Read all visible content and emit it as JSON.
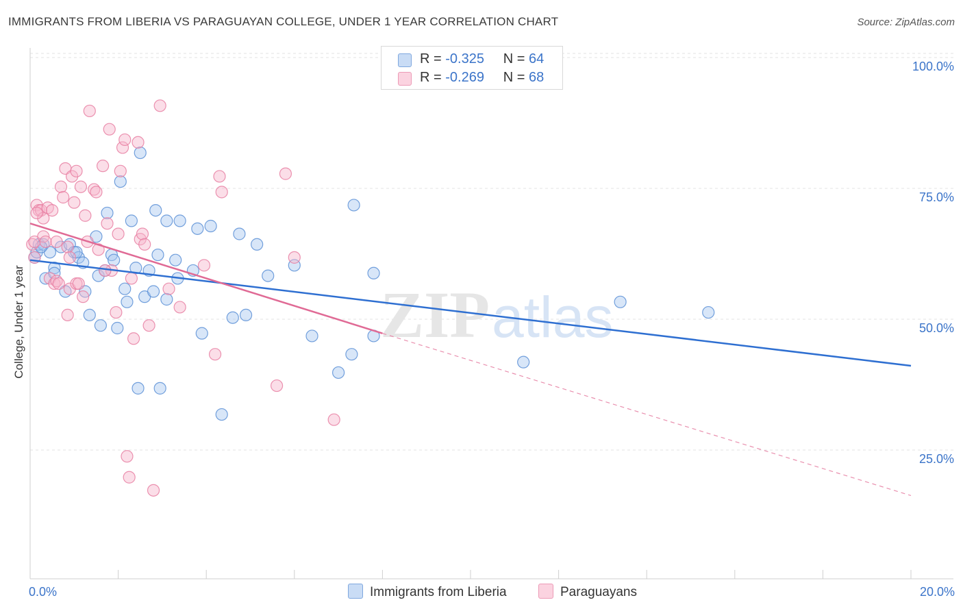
{
  "title": "IMMIGRANTS FROM LIBERIA VS PARAGUAYAN COLLEGE, UNDER 1 YEAR CORRELATION CHART",
  "source": "Source: ZipAtlas.com",
  "watermark": {
    "zip": "ZIP",
    "atlas": "atlas"
  },
  "legend_top": {
    "rows": [
      {
        "r_label": "R = ",
        "r_value": "-0.325",
        "n_label": "N = ",
        "n_value": "64",
        "color": "#a9c8f0"
      },
      {
        "r_label": "R = ",
        "r_value": "-0.269",
        "n_label": "N = ",
        "n_value": "68",
        "color": "#f7b6cb"
      }
    ]
  },
  "legend_bottom": [
    {
      "label": "Immigrants from Liberia",
      "color": "#a9c8f0"
    },
    {
      "label": "Paraguayans",
      "color": "#f7b6cb"
    }
  ],
  "chart_data": {
    "type": "scatter",
    "title": "IMMIGRANTS FROM LIBERIA VS PARAGUAYAN COLLEGE, UNDER 1 YEAR CORRELATION CHART",
    "xlabel": "",
    "ylabel": "College, Under 1 year",
    "xlim": [
      0,
      20
    ],
    "ylim": [
      0,
      105
    ],
    "x_tick_labels": [
      "0.0%",
      "20.0%"
    ],
    "x_tick_label_values": [
      0,
      20
    ],
    "x_ticks": [
      0,
      2,
      4,
      6,
      8,
      10,
      12,
      14,
      16,
      18,
      20
    ],
    "y_ticks": [
      25,
      50,
      75,
      100
    ],
    "y_tick_labels": [
      "25.0%",
      "50.0%",
      "75.0%",
      "100.0%"
    ],
    "grid": true,
    "series": [
      {
        "name": "Immigrants from Liberia",
        "color": "#5b8fd6",
        "fill": "#a9c8f0",
        "trend": {
          "x": [
            0,
            20
          ],
          "y": [
            63.0,
            42.8
          ],
          "color": "#2e6fd1"
        },
        "points": [
          [
            0.1,
            63.5
          ],
          [
            0.15,
            64.5
          ],
          [
            0.2,
            66.0
          ],
          [
            0.3,
            66.0
          ],
          [
            0.35,
            59.5
          ],
          [
            0.45,
            64.5
          ],
          [
            0.55,
            61.5
          ],
          [
            0.55,
            60.5
          ],
          [
            0.7,
            65.5
          ],
          [
            0.8,
            57.0
          ],
          [
            0.9,
            66.0
          ],
          [
            1.0,
            64.5
          ],
          [
            1.1,
            63.5
          ],
          [
            1.2,
            62.5
          ],
          [
            1.25,
            57.0
          ],
          [
            1.35,
            52.5
          ],
          [
            1.5,
            67.5
          ],
          [
            1.55,
            60.0
          ],
          [
            1.6,
            50.5
          ],
          [
            1.7,
            61.0
          ],
          [
            1.75,
            72.0
          ],
          [
            1.85,
            64.0
          ],
          [
            1.9,
            63.0
          ],
          [
            1.98,
            50.0
          ],
          [
            2.05,
            78.0
          ],
          [
            2.15,
            57.5
          ],
          [
            2.2,
            55.0
          ],
          [
            2.3,
            70.5
          ],
          [
            2.4,
            61.5
          ],
          [
            2.45,
            38.5
          ],
          [
            2.5,
            83.5
          ],
          [
            2.6,
            56.0
          ],
          [
            2.7,
            61.0
          ],
          [
            2.8,
            57.0
          ],
          [
            2.85,
            72.5
          ],
          [
            2.9,
            64.0
          ],
          [
            2.95,
            38.5
          ],
          [
            3.1,
            70.5
          ],
          [
            3.1,
            55.5
          ],
          [
            3.3,
            63.0
          ],
          [
            3.35,
            59.5
          ],
          [
            3.4,
            70.5
          ],
          [
            3.7,
            61.0
          ],
          [
            3.8,
            69.0
          ],
          [
            3.9,
            49.0
          ],
          [
            4.1,
            69.5
          ],
          [
            4.35,
            33.5
          ],
          [
            4.6,
            52.0
          ],
          [
            4.75,
            68.0
          ],
          [
            4.9,
            52.5
          ],
          [
            5.15,
            66.0
          ],
          [
            5.4,
            60.0
          ],
          [
            6.0,
            62.0
          ],
          [
            6.4,
            48.5
          ],
          [
            7.0,
            41.5
          ],
          [
            7.3,
            45.0
          ],
          [
            7.35,
            73.5
          ],
          [
            7.8,
            48.5
          ],
          [
            7.8,
            60.5
          ],
          [
            11.2,
            43.5
          ],
          [
            13.4,
            55.0
          ],
          [
            15.4,
            53.0
          ],
          [
            1.05,
            64.5
          ],
          [
            0.25,
            65.5
          ]
        ]
      },
      {
        "name": "Paraguayans",
        "color": "#e87fa2",
        "fill": "#f7b6cb",
        "trend": {
          "x": [
            0,
            8
          ],
          "y": [
            70.0,
            49.0
          ],
          "color": "#e06a95"
        },
        "trend_dashed": {
          "x": [
            8,
            20
          ],
          "y": [
            49.0,
            18.0
          ],
          "color": "#e98fae"
        },
        "points": [
          [
            0.05,
            66.0
          ],
          [
            0.1,
            66.5
          ],
          [
            0.1,
            63.5
          ],
          [
            0.15,
            73.5
          ],
          [
            0.2,
            72.5
          ],
          [
            0.25,
            72.5
          ],
          [
            0.3,
            67.5
          ],
          [
            0.3,
            71.0
          ],
          [
            0.35,
            66.5
          ],
          [
            0.4,
            73.0
          ],
          [
            0.45,
            59.5
          ],
          [
            0.5,
            72.5
          ],
          [
            0.55,
            58.5
          ],
          [
            0.6,
            66.5
          ],
          [
            0.6,
            59.0
          ],
          [
            0.7,
            77.0
          ],
          [
            0.75,
            75.0
          ],
          [
            0.8,
            80.5
          ],
          [
            0.85,
            65.5
          ],
          [
            0.9,
            57.5
          ],
          [
            0.9,
            63.5
          ],
          [
            0.95,
            79.0
          ],
          [
            1.0,
            74.0
          ],
          [
            1.05,
            58.5
          ],
          [
            1.05,
            80.0
          ],
          [
            1.1,
            58.5
          ],
          [
            1.15,
            77.0
          ],
          [
            1.2,
            56.0
          ],
          [
            1.25,
            71.5
          ],
          [
            1.3,
            66.5
          ],
          [
            1.35,
            91.5
          ],
          [
            1.45,
            76.5
          ],
          [
            1.5,
            76.0
          ],
          [
            1.55,
            65.0
          ],
          [
            1.65,
            81.0
          ],
          [
            1.75,
            70.0
          ],
          [
            1.8,
            88.0
          ],
          [
            1.85,
            61.0
          ],
          [
            1.95,
            53.0
          ],
          [
            2.0,
            68.0
          ],
          [
            2.05,
            80.0
          ],
          [
            2.1,
            84.5
          ],
          [
            2.15,
            86.0
          ],
          [
            2.2,
            25.5
          ],
          [
            2.25,
            21.5
          ],
          [
            2.3,
            59.5
          ],
          [
            2.35,
            48.0
          ],
          [
            2.45,
            85.5
          ],
          [
            2.5,
            67.0
          ],
          [
            2.55,
            68.0
          ],
          [
            2.6,
            66.0
          ],
          [
            2.7,
            50.5
          ],
          [
            2.8,
            19.0
          ],
          [
            2.95,
            92.5
          ],
          [
            3.15,
            57.5
          ],
          [
            3.4,
            54.0
          ],
          [
            3.95,
            62.0
          ],
          [
            4.2,
            45.0
          ],
          [
            4.3,
            79.0
          ],
          [
            4.35,
            76.0
          ],
          [
            5.6,
            39.0
          ],
          [
            5.8,
            79.5
          ],
          [
            6.0,
            63.5
          ],
          [
            6.9,
            32.5
          ],
          [
            0.15,
            72.0
          ],
          [
            0.65,
            58.5
          ],
          [
            1.7,
            61.0
          ],
          [
            0.85,
            52.5
          ]
        ]
      }
    ]
  }
}
